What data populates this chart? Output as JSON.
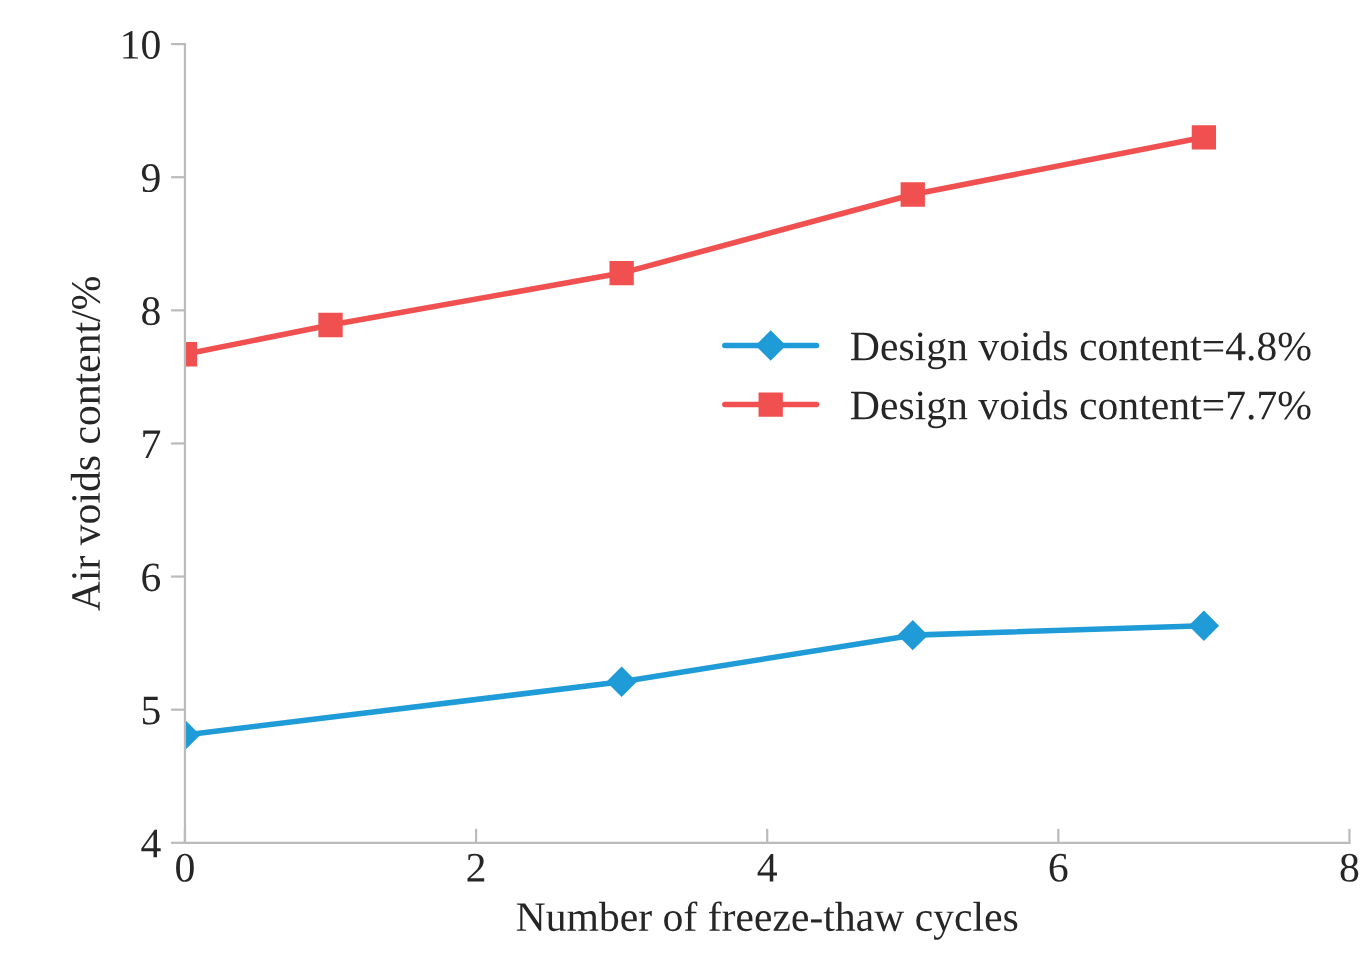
{
  "chart_data": {
    "type": "line",
    "xlabel": "Number of freeze-thaw cycles",
    "ylabel": "Air voids content/%",
    "xlim": [
      0,
      8
    ],
    "xticks": [
      0,
      2,
      4,
      6,
      8
    ],
    "ylim": [
      4,
      10
    ],
    "yticks": [
      4,
      5,
      6,
      7,
      8,
      9,
      10
    ],
    "grid": false,
    "legend": "right",
    "series": [
      {
        "name": "Design voids content=4.8%",
        "color": "#1f9bd7",
        "marker": "diamond",
        "x": [
          0,
          3,
          5,
          7
        ],
        "values": [
          4.81,
          5.21,
          5.56,
          5.63
        ]
      },
      {
        "name": "Design voids content=7.7%",
        "color": "#f0504f",
        "marker": "square",
        "x": [
          0,
          1,
          3,
          5,
          7
        ],
        "values": [
          7.67,
          7.89,
          8.28,
          8.87,
          9.3
        ]
      }
    ]
  }
}
